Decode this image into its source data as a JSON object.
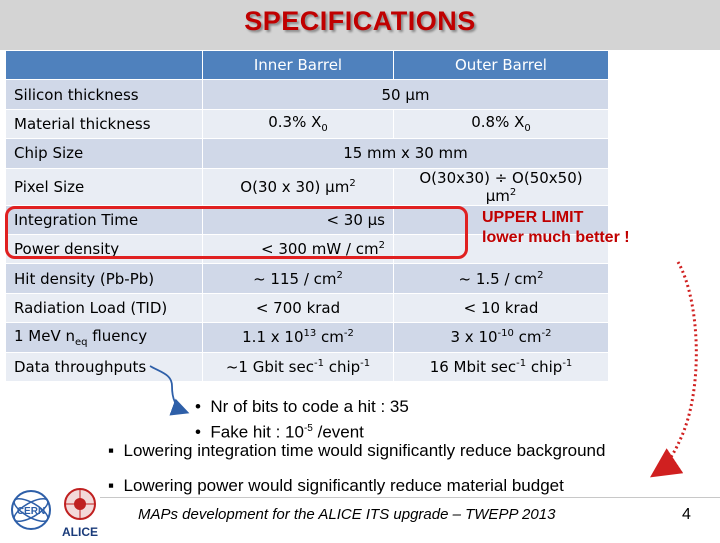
{
  "title": "SPECIFICATIONS",
  "table": {
    "headers": [
      "",
      "Inner Barrel",
      "Outer Barrel"
    ],
    "rows": [
      {
        "label": "Silicon thickness",
        "inner": "50 μm",
        "outer": "",
        "span": true
      },
      {
        "label": "Material thickness",
        "inner": "0.3% X",
        "inner_sub": "0",
        "outer": "0.8% X",
        "outer_sub": "0"
      },
      {
        "label": "Chip Size",
        "inner": "15 mm x 30 mm",
        "outer": "",
        "span": true
      },
      {
        "label": "Pixel Size",
        "inner": "O(30 x 30) μm",
        "inner_sup": "2",
        "outer": "O(30x30) ÷ O(50x50) μm",
        "outer_sup": "2"
      },
      {
        "label": "Integration Time",
        "inner": "< 30 μs",
        "outer": "",
        "span": true,
        "align": "right"
      },
      {
        "label": "Power density",
        "inner": "< 300 mW / cm",
        "inner_sup": "2",
        "outer": "",
        "span": true,
        "align": "right"
      },
      {
        "label": "Hit density (Pb-Pb)",
        "inner": "~ 115 / cm",
        "inner_sup": "2",
        "outer": "~ 1.5 / cm",
        "outer_sup": "2"
      },
      {
        "label": "Radiation Load (TID)",
        "inner": "< 700 krad",
        "outer": "< 10 krad"
      },
      {
        "label": "1 MeV n",
        "label_sub": "eq",
        "label_tail": " fluency",
        "inner": "1.1 x 10",
        "inner_sup": "13",
        "inner_tail": " cm",
        "inner_sup2": "-2",
        "outer": "3 x 10",
        "outer_sup": "-10",
        "outer_tail": " cm",
        "outer_sup2": "-2"
      },
      {
        "label": "Data throughputs",
        "inner": "~1 Gbit sec",
        "inner_sup": "-1",
        "inner_tail": " chip",
        "inner_sup2": "-1",
        "outer": "16 Mbit sec",
        "outer_sup": "-1",
        "outer_tail": " chip",
        "outer_sup2": "-1"
      }
    ]
  },
  "limit_note": {
    "line1": "UPPER LIMIT",
    "line2": "lower much better !"
  },
  "sub_bullets": [
    {
      "text": "Nr of bits to code a hit : 35"
    },
    {
      "text": "Fake hit : 10",
      "sup": "-5",
      "tail": " /event"
    }
  ],
  "main_bullets": [
    "Lowering integration time would significantly reduce background",
    "Lowering power would significantly reduce material budget"
  ],
  "footer": "MAPs development for the ALICE ITS upgrade – TWEPP 2013",
  "page_number": "4",
  "logos": {
    "cern": "CERN",
    "alice": "ALICE"
  },
  "colors": {
    "title": "#c00000",
    "header": "#4f81bd",
    "row_odd": "#d0d8e8",
    "row_even": "#e9edf4",
    "highlight_box": "#e02020",
    "arrow_blue": "#2e5fa8"
  }
}
